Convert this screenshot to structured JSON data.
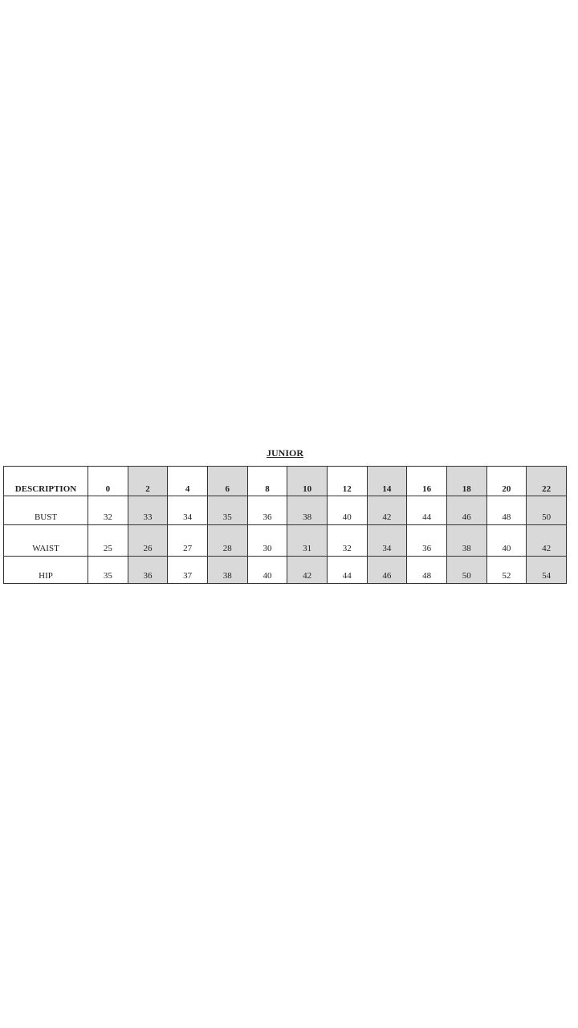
{
  "title": "JUNIOR",
  "table": {
    "header_label": "DESCRIPTION",
    "sizes": [
      "0",
      "2",
      "4",
      "6",
      "8",
      "10",
      "12",
      "14",
      "16",
      "18",
      "20",
      "22"
    ],
    "rows": [
      {
        "label": "BUST",
        "values": [
          "32",
          "33",
          "34",
          "35",
          "36",
          "38",
          "40",
          "42",
          "44",
          "46",
          "48",
          "50"
        ]
      },
      {
        "label": "WAIST",
        "values": [
          "25",
          "26",
          "27",
          "28",
          "30",
          "31",
          "32",
          "34",
          "36",
          "38",
          "40",
          "42"
        ]
      },
      {
        "label": "HIP",
        "values": [
          "35",
          "36",
          "37",
          "38",
          "40",
          "42",
          "44",
          "46",
          "48",
          "50",
          "52",
          "54"
        ]
      }
    ],
    "shaded_color": "#d9d9d9"
  }
}
